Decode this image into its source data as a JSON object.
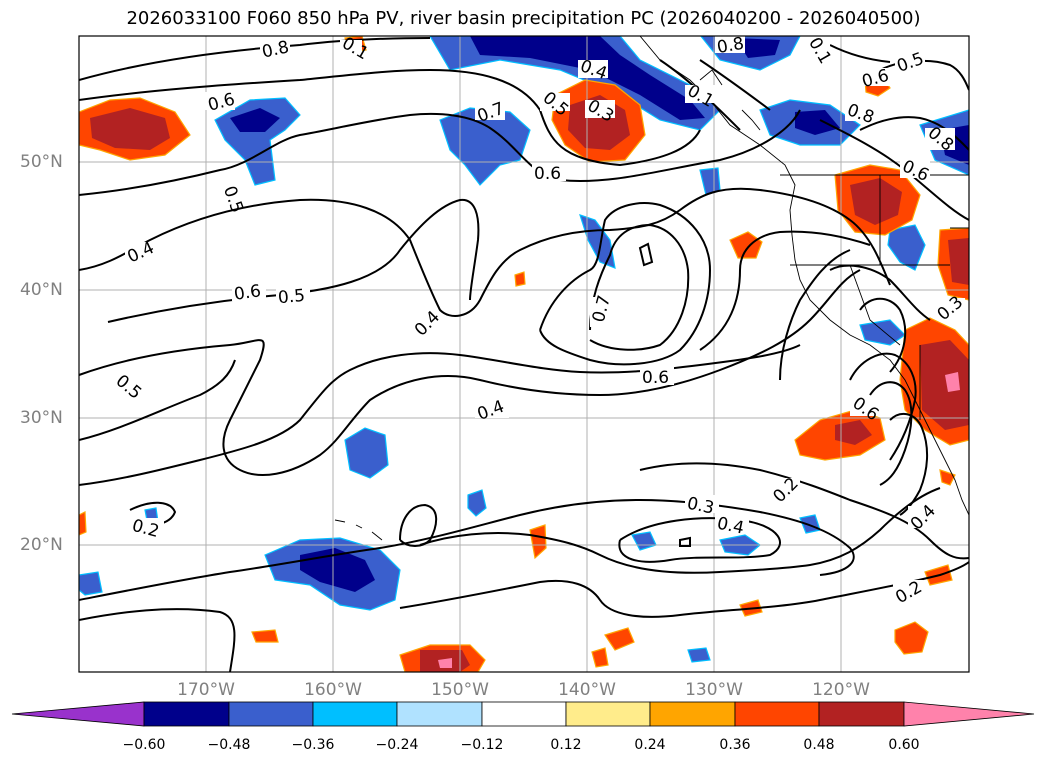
{
  "title": "2026033100 F060 850 hPa PV, river basin precipitation PC (2026040200 - 2026040500)",
  "lat_labels": [
    "50°N",
    "40°N",
    "30°N",
    "20°N"
  ],
  "lon_labels": [
    "170°W",
    "160°W",
    "150°W",
    "140°W",
    "130°W",
    "120°W"
  ],
  "colorbar": {
    "colors": [
      "#9932cc",
      "#00008b",
      "#3a5fcd",
      "#00bfff",
      "#b0e2ff",
      "#ffffff",
      "#ffec8b",
      "#ffa500",
      "#ff4500",
      "#b22222",
      "#ff82ab"
    ],
    "ticks": [
      "−0.60",
      "−0.48",
      "−0.36",
      "−0.24",
      "−0.12",
      "0.12",
      "0.24",
      "0.36",
      "0.48",
      "0.60"
    ]
  },
  "contour_labels": [
    "0.8",
    "0.6",
    "0.5",
    "0.4",
    "0.7",
    "0.3",
    "0.2",
    "0.1"
  ]
}
